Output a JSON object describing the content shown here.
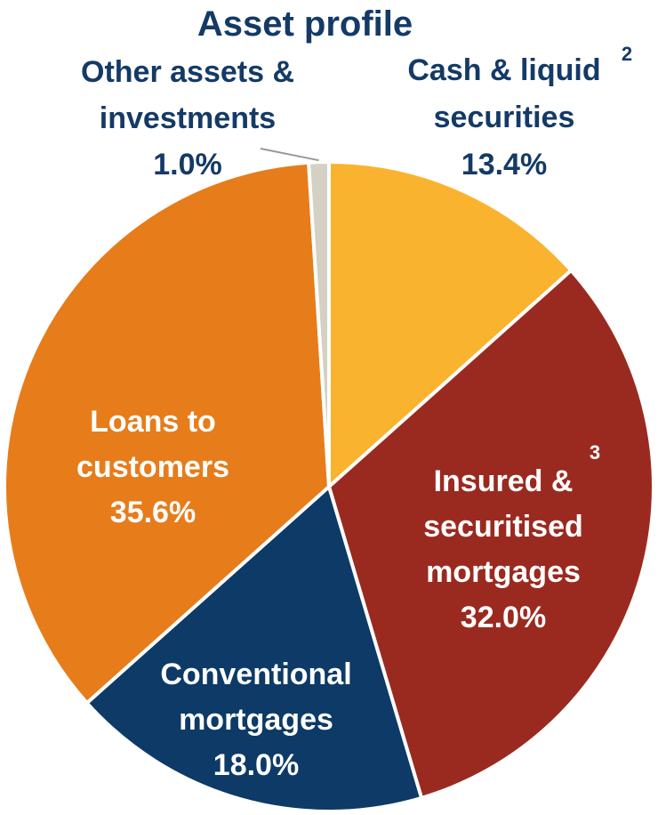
{
  "chart_data": {
    "type": "pie",
    "title": "Asset profile",
    "slices": [
      {
        "label_lines": [
          "Cash & liquid",
          "securities"
        ],
        "superscript": "2",
        "value_label": "13.4%",
        "value": 13.4,
        "color": "#fab32e",
        "text_color": "#143a66"
      },
      {
        "label_lines": [
          "Insured &",
          "securitised",
          "mortgages"
        ],
        "superscript": "3",
        "value_label": "32.0%",
        "value": 32.0,
        "color": "#9a2a20",
        "text_color": "#ffffff"
      },
      {
        "label_lines": [
          "Conventional",
          "mortgages"
        ],
        "superscript": "",
        "value_label": "18.0%",
        "value": 18.0,
        "color": "#0d3a66",
        "text_color": "#ffffff"
      },
      {
        "label_lines": [
          "Loans to",
          "customers"
        ],
        "superscript": "",
        "value_label": "35.6%",
        "value": 35.6,
        "color": "#e77c1b",
        "text_color": "#ffffff"
      },
      {
        "label_lines": [
          "Other assets &",
          "investments"
        ],
        "superscript": "",
        "value_label": "1.0%",
        "value": 1.0,
        "color": "#d4d1c4",
        "text_color": "#143a66"
      }
    ]
  }
}
